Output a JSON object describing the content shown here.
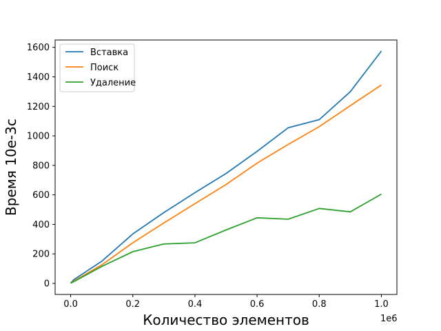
{
  "chart_data": {
    "type": "line",
    "title": "",
    "xlabel": "Количество элементов",
    "ylabel": "Время 10e-3с",
    "x_offset_label": "1e6",
    "xlim": [
      -0.05,
      1.05
    ],
    "ylim": [
      -75,
      1650
    ],
    "x_ticks": [
      0.0,
      0.2,
      0.4,
      0.6,
      0.8,
      1.0
    ],
    "x_tick_labels": [
      "0.0",
      "0.2",
      "0.4",
      "0.6",
      "0.8",
      "1.0"
    ],
    "y_ticks": [
      0,
      200,
      400,
      600,
      800,
      1000,
      1200,
      1400,
      1600
    ],
    "y_tick_labels": [
      "0",
      "200",
      "400",
      "600",
      "800",
      "1000",
      "1200",
      "1400",
      "1600"
    ],
    "grid": false,
    "legend_position": "top-left",
    "x": [
      0.0,
      0.01,
      0.1,
      0.2,
      0.3,
      0.4,
      0.5,
      0.6,
      0.7,
      0.8,
      0.9,
      1.0
    ],
    "series": [
      {
        "name": "Вставка",
        "color": "#1f77b4",
        "values": [
          2,
          25,
          150,
          335,
          480,
          615,
          745,
          895,
          1055,
          1110,
          1300,
          1575
        ]
      },
      {
        "name": "Поиск",
        "color": "#ff7f0e",
        "values": [
          1,
          15,
          125,
          275,
          410,
          540,
          670,
          815,
          942,
          1063,
          1205,
          1345
        ]
      },
      {
        "name": "Удаление",
        "color": "#2ca02c",
        "values": [
          1,
          12,
          115,
          215,
          267,
          275,
          362,
          445,
          435,
          508,
          485,
          605
        ]
      }
    ]
  }
}
